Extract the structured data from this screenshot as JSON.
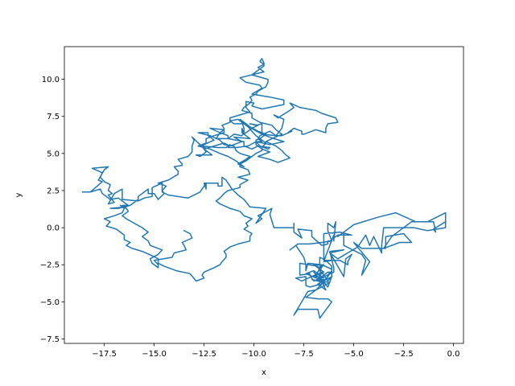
{
  "chart_data": {
    "type": "line",
    "title": "",
    "xlabel": "x",
    "ylabel": "y",
    "xlim": [
      -19.5,
      0.5
    ],
    "ylim": [
      -7.8,
      12.2
    ],
    "xticks": [
      -17.5,
      -15.0,
      -12.5,
      -10.0,
      -7.5,
      -5.0,
      -2.5,
      0.0
    ],
    "xtick_labels": [
      "−17.5",
      "−15.0",
      "−12.5",
      "−10.0",
      "−7.5",
      "−5.0",
      "−2.5",
      "0.0"
    ],
    "yticks": [
      -7.5,
      -5.0,
      -2.5,
      0.0,
      2.5,
      5.0,
      7.5,
      10.0
    ],
    "ytick_labels": [
      "−7.5",
      "−5.0",
      "−2.5",
      "0.0",
      "2.5",
      "5.0",
      "7.5",
      "10.0"
    ],
    "grid": false,
    "series": [
      {
        "color": "#1f77b4",
        "x": [
          -0.4,
          -1.0,
          -0.9,
          -1.0,
          -2.1,
          -3.1,
          -3.3,
          -3.5,
          -2.7,
          -2.1,
          -2.5,
          -3.4,
          -3.4,
          -4.6,
          -5.0,
          -4.2,
          -4.6,
          -4.4,
          -4.6,
          -5.5,
          -5.5,
          -5.8,
          -5.0,
          -3.8,
          -2.9,
          -1.9,
          -1.3,
          -0.4,
          -0.4,
          -1.3,
          -2.0,
          -3.5,
          -3.6,
          -3.6,
          -4.0,
          -4.2,
          -4.4,
          -4.8,
          -5.8,
          -6.2,
          -5.5,
          -6.2,
          -6.0,
          -6.0,
          -7.0,
          -7.2,
          -7.2,
          -7.7,
          -7.7,
          -6.8,
          -6.7,
          -6.7,
          -6.4,
          -6.1,
          -6.1,
          -6.3,
          -6.6,
          -7.0,
          -6.5,
          -7.0,
          -6.5,
          -6.7,
          -6.6,
          -6.7,
          -6.9,
          -6.5,
          -7.0,
          -7.4,
          -6.7,
          -6.4,
          -6.2,
          -6.3,
          -6.8,
          -6.5,
          -7.0,
          -6.6,
          -6.4,
          -6.8,
          -6.1,
          -6.3,
          -6.7,
          -6.6,
          -6.9,
          -7.4,
          -6.8,
          -6.3,
          -6.1,
          -6.7,
          -6.8,
          -7.8,
          -8.0,
          -7.3,
          -6.9,
          -6.2,
          -7.1,
          -6.5,
          -6.8,
          -7.6,
          -7.9,
          -7.4,
          -7.4,
          -7.2,
          -6.9,
          -6.6,
          -6.3,
          -6.1,
          -6.1,
          -6.6,
          -7.3,
          -7.4,
          -7.4,
          -7.5,
          -7.9,
          -8.2,
          -7.8,
          -7.2,
          -6.6,
          -6.1,
          -6.3,
          -6.3,
          -6.0,
          -5.9,
          -6.0,
          -6.0,
          -6.4,
          -6.5,
          -6.1,
          -6.1,
          -6.1,
          -5.5,
          -5.4,
          -5.1,
          -5.3,
          -5.3,
          -5.7,
          -6.5,
          -6.5,
          -5.7,
          -5.1,
          -5.8,
          -6.2,
          -6.3,
          -6.3,
          -6.6,
          -7.1,
          -7.1,
          -7.8,
          -7.6,
          -8.0,
          -8.0,
          -8.0,
          -8.0,
          -8.5,
          -9.0,
          -9.2,
          -9.1,
          -9.8,
          -9.6,
          -9.9,
          -9.4,
          -10.2,
          -10.5,
          -10.8,
          -11.1,
          -11.4,
          -11.6,
          -11.6,
          -11.8,
          -11.8,
          -12.5,
          -12.4,
          -12.4,
          -12.4,
          -12.7,
          -13.3,
          -14.3,
          -14.6,
          -14.6,
          -14.6,
          -14.6,
          -15.1,
          -15.1,
          -15.5,
          -15.8,
          -16.6,
          -16.6,
          -16.6,
          -17.0,
          -17.3,
          -17.0,
          -17.3,
          -17.1,
          -17.3,
          -17.2,
          -17.5,
          -17.7,
          -17.6,
          -18.1,
          -17.3,
          -17.5,
          -17.8,
          -17.6,
          -18.2,
          -18.6,
          -18.5,
          -18.2,
          -17.7,
          -17.6,
          -17.2,
          -16.8,
          -16.4,
          -16.3,
          -16.6,
          -16.4,
          -17.2,
          -16.8,
          -16.2,
          -15.8,
          -15.8,
          -15.3,
          -15.3,
          -15.0,
          -14.8,
          -14.5,
          -14.6,
          -14.4,
          -14.8,
          -14.3,
          -13.8,
          -13.8,
          -14.0,
          -13.6,
          -13.6,
          -13.8,
          -13.3,
          -13.1,
          -13.1,
          -13.0,
          -13.1,
          -12.7,
          -12.5,
          -12.4,
          -12.7,
          -12.9,
          -12.1,
          -12.5,
          -12.0,
          -11.5,
          -11.2,
          -10.6,
          -11.0,
          -10.2,
          -10.6,
          -10.6,
          -10.5,
          -10.1,
          -9.8,
          -10.2,
          -9.9,
          -9.6,
          -9.6,
          -8.9,
          -8.6,
          -8.5,
          -9.0,
          -8.8,
          -8.2,
          -8.0,
          -8.2,
          -7.7,
          -7.3,
          -6.9,
          -6.6,
          -5.9,
          -5.8,
          -6.3,
          -6.4,
          -6.4,
          -6.9,
          -7.5,
          -7.6,
          -7.6,
          -8.0,
          -8.3,
          -8.1,
          -8.6,
          -8.9,
          -9.2,
          -9.7,
          -9.8,
          -9.6,
          -9.9,
          -9.7,
          -9.3,
          -9.2,
          -9.8,
          -10.1,
          -10.5,
          -10.5,
          -11.3,
          -11.3,
          -11.7,
          -11.5,
          -12.2,
          -11.7,
          -11.9,
          -11.3,
          -11.1,
          -11.0,
          -10.6,
          -10.5,
          -10.5,
          -10.6,
          -10.8,
          -11.2,
          -11.0,
          -10.5,
          -10.0,
          -9.6,
          -9.0,
          -8.5,
          -9.2,
          -9.9,
          -10.3,
          -10.9,
          -11.3,
          -11.2,
          -11.4,
          -11.8,
          -12.6,
          -12.5,
          -12.0,
          -12.3,
          -12.3,
          -12.8,
          -12.2,
          -11.7,
          -11.5,
          -11.0,
          -10.9,
          -10.7,
          -10.2,
          -10.4,
          -10.8,
          -10.5,
          -10.7,
          -10.4,
          -10.1,
          -9.9,
          -9.6,
          -9.6,
          -9.4,
          -9.6,
          -9.9,
          -10.1,
          -10.3,
          -10.6,
          -10.7,
          -10.5,
          -10.2,
          -9.8,
          -9.4,
          -9.7,
          -9.9,
          -9.9,
          -9.6,
          -9.2,
          -9.8,
          -9.2,
          -8.8,
          -8.2,
          -8.4,
          -8.6,
          -8.9,
          -9.4,
          -9.1,
          -8.6,
          -8.9,
          -9.1,
          -9.7,
          -10.1,
          -10.1,
          -10.6,
          -10.5,
          -10.2,
          -10.1,
          -10.2,
          -9.9,
          -9.8,
          -9.4,
          -9.3,
          -9.3,
          -10.1,
          -9.8,
          -9.5,
          -9.5,
          -9.6,
          -9.7,
          -9.5,
          -9.8,
          -9.5,
          -10.7,
          -10.4,
          -9.7,
          -9.6,
          -10.1,
          -9.2,
          -8.5,
          -8.5,
          -9.6,
          -10.1,
          -10.0,
          -10.4,
          -10.4,
          -10.2,
          -10.7,
          -11.2,
          -11.2,
          -11.6,
          -11.5,
          -11.5,
          -12.0,
          -12.4,
          -12.4,
          -12.8,
          -12.2,
          -11.7,
          -11.3,
          -10.9,
          -10.7,
          -10.7,
          -10.3,
          -10.2,
          -10.8,
          -10.3,
          -10.7,
          -10.7,
          -11.3,
          -11.5,
          -11.7,
          -11.9,
          -11.7,
          -11.2,
          -10.7,
          -10.5,
          -10.1,
          -10.4,
          -10.3,
          -10.5,
          -10.1,
          -10.2,
          -10.2,
          -10.8,
          -11.2,
          -11.5,
          -11.4,
          -11.4,
          -11.6,
          -11.7,
          -12.0,
          -12.5,
          -12.6,
          -12.5,
          -12.9,
          -13.2,
          -13.9,
          -14.5,
          -14.8,
          -14.8,
          -15.1,
          -15.6,
          -16.1,
          -16.4,
          -16.2,
          -16.5,
          -16.5,
          -16.7,
          -16.9,
          -17.4,
          -17.2,
          -17.5,
          -17.0,
          -16.6,
          -16.5,
          -16.7,
          -16.4,
          -16.3,
          -16.6,
          -16.4,
          -16.0,
          -15.6,
          -15.3,
          -15.6,
          -15.3,
          -15.2,
          -14.6,
          -14.8,
          -15.2,
          -15.1,
          -14.8,
          -14.8,
          -15.0,
          -14.1,
          -14.0,
          -13.4,
          -13.5,
          -13.6,
          -13.1,
          -13.2,
          -13.5
        ],
        "y": [
          0.4,
          -0.1,
          -0.3,
          0.4,
          0.4,
          -0.6,
          -1.0,
          -1.4,
          -1.0,
          -1.0,
          -0.4,
          -0.6,
          -1.4,
          -1.4,
          -1.0,
          -2.3,
          -3.2,
          -2.2,
          -1.8,
          -1.2,
          -0.3,
          -0.6,
          0.2,
          0.7,
          1.0,
          0.4,
          0.4,
          1.0,
          0.0,
          -0.2,
          0.0,
          0.0,
          -1.2,
          -1.7,
          -0.6,
          -1.2,
          -0.5,
          -1.3,
          -2.1,
          -1.7,
          -1.5,
          -1.6,
          -2.7,
          -3.0,
          -3.6,
          -3.2,
          -3.1,
          -3.2,
          -2.4,
          -2.6,
          -2.9,
          -2.0,
          -2.2,
          -2.6,
          -3.3,
          -3.6,
          -3.0,
          -3.3,
          -2.5,
          -2.5,
          -3.0,
          -3.2,
          -2.5,
          -2.7,
          -3.3,
          -3.4,
          -2.9,
          -3.1,
          -3.5,
          -3.5,
          -3.0,
          -3.0,
          -3.5,
          -3.8,
          -3.0,
          -3.6,
          -4.2,
          -3.8,
          -3.3,
          -4.0,
          -3.3,
          -3.8,
          -4.2,
          -4.7,
          -4.8,
          -4.8,
          -5.0,
          -6.1,
          -5.5,
          -5.5,
          -5.9,
          -4.3,
          -4.2,
          -3.7,
          -3.5,
          -3.7,
          -3.1,
          -3.6,
          -3.4,
          -3.3,
          -3.9,
          -4.0,
          -3.9,
          -3.8,
          -3.3,
          -2.9,
          -2.8,
          -2.5,
          -2.4,
          -2.9,
          -2.5,
          -2.0,
          -1.2,
          -1.5,
          -1.1,
          -1.1,
          -1.0,
          -0.9,
          -0.2,
          0.3,
          0.0,
          0.4,
          -0.9,
          -0.5,
          -1.9,
          -2.3,
          -2.2,
          -1.9,
          -1.9,
          -3.3,
          -2.1,
          -1.8,
          -2.3,
          -2.5,
          -2.2,
          -2.2,
          -0.4,
          -0.3,
          -0.5,
          -0.5,
          -0.9,
          -0.9,
          -1.1,
          -1.2,
          -0.6,
          -0.2,
          -0.1,
          -0.7,
          -0.3,
          0.3,
          0.2,
          0.0,
          0.0,
          0.0,
          0.9,
          1.3,
          0.8,
          0.6,
          0.3,
          1.3,
          1.4,
          1.9,
          2.2,
          2.6,
          3.2,
          3.4,
          2.8,
          2.8,
          3.0,
          3.0,
          2.6,
          2.6,
          3.0,
          2.4,
          2.0,
          2.2,
          2.4,
          2.7,
          3.1,
          3.0,
          2.7,
          2.1,
          2.0,
          1.8,
          1.9,
          2.4,
          2.6,
          2.3,
          1.6,
          1.7,
          2.2,
          2.3,
          2.5,
          2.9,
          3.1,
          3.4,
          3.7,
          4.0,
          4.1,
          3.9,
          3.2,
          3.1,
          2.4,
          2.4,
          2.4,
          2.4,
          2.6,
          2.3,
          1.9,
          2.0,
          1.6,
          1.5,
          1.5,
          1.4,
          1.3,
          1.3,
          1.5,
          1.9,
          2.1,
          2.6,
          2.3,
          2.3,
          1.9,
          2.3,
          2.5,
          2.8,
          3.0,
          3.2,
          3.6,
          3.8,
          4.1,
          4.2,
          4.3,
          4.6,
          4.8,
          5.1,
          5.5,
          5.9,
          6.1,
          5.6,
          5.3,
          5.1,
          4.8,
          4.9,
          4.9,
          5.3,
          5.5,
          5.7,
          5.5,
          5.8,
          6.1,
          6.0,
          6.4,
          6.7,
          6.3,
          6.7,
          6.9,
          7.0,
          6.9,
          7.0,
          6.3,
          6.2,
          6.7,
          7.3,
          7.6,
          7.4,
          7.9,
          8.1,
          8.4,
          8.1,
          8.0,
          7.9,
          7.7,
          7.4,
          7.1,
          7.0,
          6.7,
          6.4,
          6.6,
          6.3,
          6.3,
          6.5,
          6.7,
          6.4,
          6.5,
          6.2,
          6.2,
          6.5,
          6.2,
          6.0,
          5.8,
          5.8,
          5.5,
          5.3,
          5.4,
          5.5,
          5.3,
          5.5,
          5.8,
          6.0,
          6.2,
          6.4,
          6.6,
          6.7,
          6.4,
          6.0,
          6.0,
          6.2,
          6.3,
          6.2,
          6.4,
          6.7,
          7.1,
          7.3,
          7.2,
          7.0,
          7.0,
          6.6,
          6.3,
          6.0,
          5.8,
          5.6,
          5.8,
          5.5,
          5.4,
          5.4,
          5.6,
          5.4,
          5.4,
          5.5,
          5.6,
          5.9,
          6.2,
          6.4,
          6.4,
          6.2,
          5.9,
          5.6,
          5.5,
          5.2,
          5.0,
          4.8,
          4.6,
          4.3,
          4.1,
          4.3,
          4.5,
          4.8,
          5.0,
          5.2,
          5.4,
          5.7,
          5.9,
          6.2,
          6.5,
          6.8,
          7.1,
          7.3,
          7.1,
          6.8,
          6.5,
          6.3,
          6.0,
          5.9,
          5.6,
          5.3,
          5.1,
          4.8,
          4.6,
          4.4,
          4.7,
          4.9,
          5.2,
          5.5,
          5.8,
          6.0,
          6.3,
          6.6,
          6.9,
          7.1,
          7.4,
          7.7,
          7.9,
          8.1,
          8.4,
          8.6,
          8.8,
          9.0,
          9.2,
          9.5,
          9.8,
          10.0,
          10.3,
          10.6,
          10.9,
          11.1,
          11.4,
          11.2,
          11.0,
          10.8,
          10.5,
          10.1,
          9.8,
          9.6,
          9.4,
          9.0,
          8.8,
          8.6,
          8.3,
          8.0,
          8.2,
          8.4,
          8.5,
          8.1,
          7.8,
          7.6,
          7.4,
          7.1,
          6.9,
          6.7,
          6.4,
          6.2,
          6.0,
          5.7,
          5.5,
          5.3,
          5.0,
          4.8,
          4.5,
          4.3,
          4.1,
          3.9,
          3.6,
          3.4,
          3.2,
          2.9,
          2.7,
          2.5,
          2.3,
          2.0,
          1.8,
          1.6,
          1.3,
          1.1,
          0.8,
          0.6,
          0.3,
          0.1,
          -0.1,
          -0.4,
          -0.6,
          -0.9,
          -1.1,
          -1.3,
          -1.6,
          -1.8,
          -2.0,
          -2.3,
          -2.5,
          -2.7,
          -3.0,
          -3.2,
          -3.4,
          -3.6,
          -3.1,
          -2.9,
          -2.6,
          -2.4,
          -2.1,
          -1.9,
          -1.6,
          -1.4,
          -1.2,
          -1.0,
          -0.8,
          -0.5,
          -0.3,
          -0.1,
          0.1,
          0.4,
          0.6,
          0.8,
          1.0,
          1.3,
          1.5,
          1.3,
          1.1,
          0.8,
          0.6,
          0.3,
          0.0,
          -0.3,
          -0.6,
          -0.9,
          -1.2,
          -1.5,
          -1.8,
          -2.1,
          -2.4,
          -2.7,
          -2.5,
          -2.2,
          -2.0,
          -1.7,
          -1.5,
          -1.2,
          -1.0,
          -0.7,
          -0.4,
          -0.2
        ]
      }
    ]
  }
}
